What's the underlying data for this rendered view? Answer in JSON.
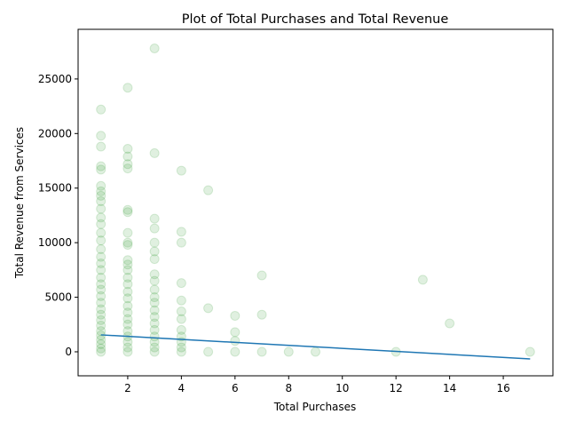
{
  "chart_data": {
    "type": "scatter",
    "title": "Plot of Total Purchases and Total Revenue",
    "x_label": "Total Purchases",
    "y_label": "Total Revenue from Services",
    "xlim": [
      0.15,
      17.85
    ],
    "ylim": [
      -2200,
      29550
    ],
    "xticks": [
      2,
      4,
      6,
      8,
      10,
      12,
      14,
      16
    ],
    "yticks": [
      0,
      5000,
      10000,
      15000,
      20000,
      25000
    ],
    "grid": false,
    "series": [
      {
        "type": "scatter",
        "color": "#008000",
        "opacity": 0.12,
        "x": [
          1,
          1,
          1,
          1,
          1,
          1,
          1,
          1,
          1,
          1,
          1,
          1,
          1,
          1,
          1,
          1,
          1,
          1,
          1,
          1,
          1,
          1,
          1,
          1,
          1,
          1,
          1,
          1,
          1,
          1,
          1,
          1,
          1,
          2,
          2,
          2,
          2,
          2,
          2,
          2,
          2,
          2,
          2,
          2,
          2,
          2,
          2,
          2,
          2,
          2,
          2,
          2,
          2,
          2,
          2,
          2,
          2,
          2,
          2,
          3,
          3,
          3,
          3,
          3,
          3,
          3,
          3,
          3,
          3,
          3,
          3,
          3,
          3,
          3,
          3,
          3,
          3,
          3,
          3,
          4,
          4,
          4,
          4,
          4,
          4,
          4,
          4,
          4,
          4,
          4,
          4,
          5,
          5,
          5,
          6,
          6,
          6,
          6,
          7,
          7,
          7,
          8,
          9,
          12,
          13,
          14,
          17
        ],
        "values": [
          0,
          300,
          700,
          1100,
          1500,
          1900,
          2400,
          2900,
          3400,
          3900,
          4500,
          5100,
          5700,
          6200,
          6800,
          7500,
          8100,
          8700,
          9400,
          10200,
          10900,
          11700,
          12300,
          13100,
          13800,
          14300,
          14700,
          15200,
          16700,
          17000,
          18800,
          19800,
          22200,
          0,
          400,
          900,
          1400,
          1900,
          2500,
          3000,
          3600,
          4200,
          4900,
          5500,
          6200,
          6800,
          7500,
          8000,
          8400,
          9800,
          10000,
          10900,
          12800,
          13000,
          16800,
          17200,
          17900,
          18600,
          24200,
          0,
          400,
          900,
          1400,
          2000,
          2600,
          3200,
          3800,
          4500,
          5000,
          5700,
          6500,
          7100,
          8500,
          9200,
          10000,
          11300,
          12200,
          18200,
          27800,
          0,
          400,
          900,
          1400,
          2000,
          3000,
          3700,
          4700,
          6300,
          10000,
          11000,
          16600,
          0,
          4000,
          14800,
          0,
          1000,
          1800,
          3300,
          0,
          3400,
          7000,
          0,
          0,
          0,
          6600,
          2600,
          0
        ]
      },
      {
        "type": "line",
        "color": "#1f77b4",
        "x": [
          1,
          17
        ],
        "values": [
          1550,
          -650
        ]
      }
    ]
  }
}
